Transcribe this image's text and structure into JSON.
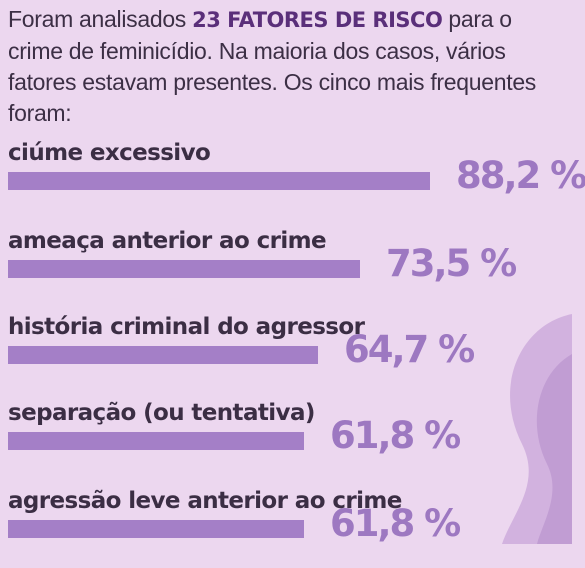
{
  "intro": {
    "before": "Foram analisados ",
    "highlight": "23 FATORES DE RISCO",
    "after": " para o crime de feminicídio. Na maioria dos casos, vários fatores estavam presentes. Os cinco mais frequentes foram:"
  },
  "chart_data": {
    "type": "bar",
    "orientation": "horizontal",
    "bar_color": "#a47fc7",
    "value_color": "#9d78c1",
    "categories": [
      "ciúme excessivo",
      "ameaça anterior ao crime",
      "história criminal do agressor",
      "separação (ou tentativa)",
      "agressão leve anterior ao crime"
    ],
    "values": [
      88.2,
      73.5,
      64.7,
      61.8,
      61.8
    ],
    "value_labels": [
      "88,2 %",
      "73,5 %",
      "64,7 %",
      "61,8 %",
      "61,8 %"
    ]
  }
}
